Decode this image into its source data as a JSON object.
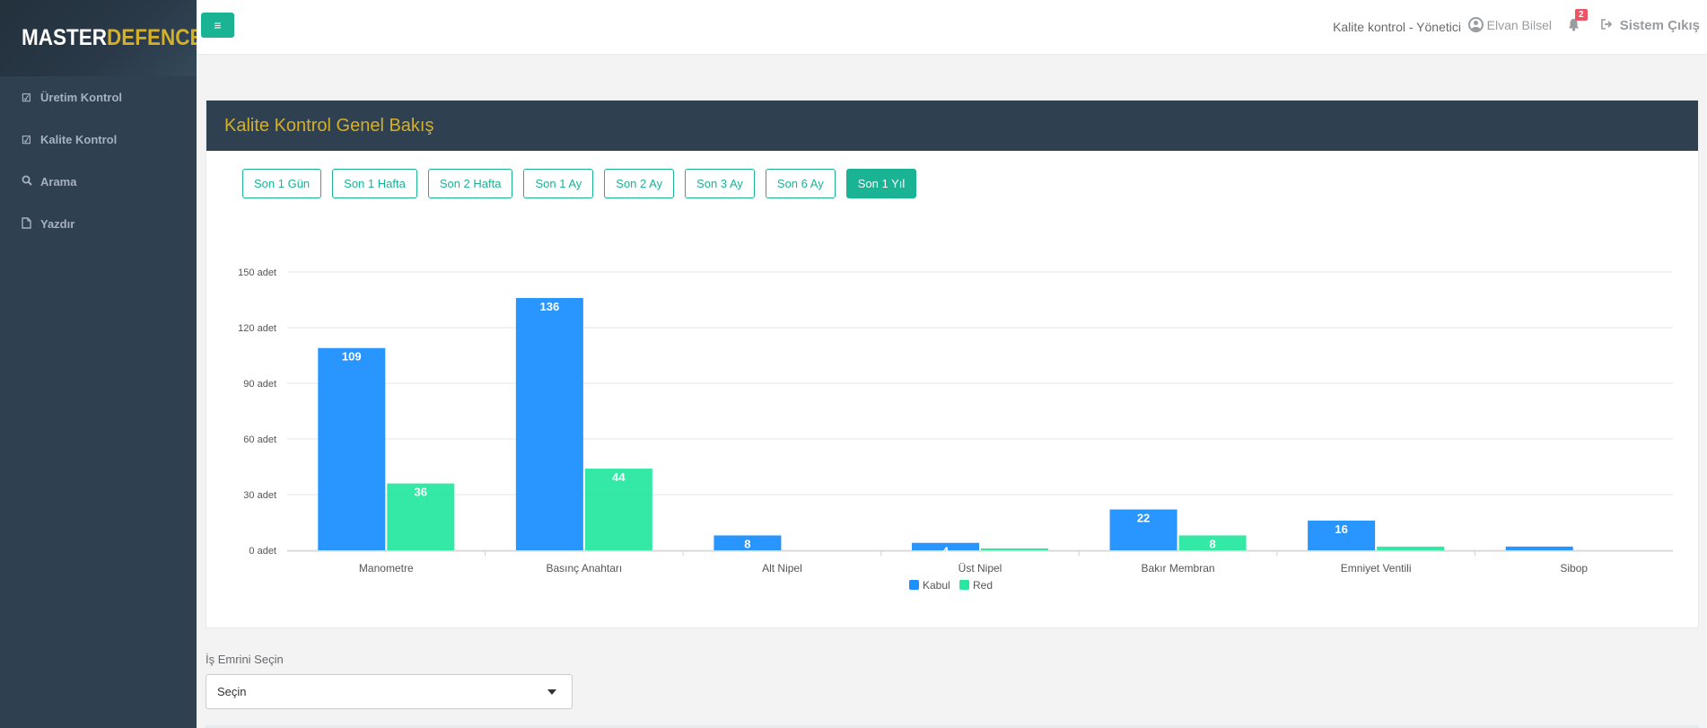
{
  "brand": {
    "part1": "MASTER",
    "part2": "DEFENCE"
  },
  "sidebar": {
    "items": [
      {
        "label": "Üretim Kontrol",
        "icon": "check-square-icon"
      },
      {
        "label": "Kalite Kontrol",
        "icon": "check-square-icon"
      },
      {
        "label": "Arama",
        "icon": "search-icon"
      },
      {
        "label": "Yazdır",
        "icon": "file-icon"
      }
    ]
  },
  "topbar": {
    "role": "Kalite kontrol - Yönetici",
    "user": "Elvan Bilsel",
    "notification_count": "2",
    "logout": "Sistem Çıkış"
  },
  "panel": {
    "title": "Kalite Kontrol Genel Bakış",
    "ranges": [
      "Son 1 Gün",
      "Son 1 Hafta",
      "Son 2 Hafta",
      "Son 1 Ay",
      "Son 2 Ay",
      "Son 3 Ay",
      "Son 6 Ay",
      "Son 1 Yıl"
    ],
    "active_range": "Son 1 Yıl"
  },
  "chart_data": {
    "type": "bar",
    "categories": [
      "Manometre",
      "Basınç Anahtarı",
      "Alt Nipel",
      "Üst Nipel",
      "Bakır Membran",
      "Emniyet Ventili",
      "Sibop"
    ],
    "series": [
      {
        "name": "Kabul",
        "color": "#1e90ff",
        "values": [
          109,
          136,
          8,
          4,
          22,
          16,
          2
        ]
      },
      {
        "name": "Red",
        "color": "#28e8a0",
        "values": [
          36,
          44,
          0,
          1,
          8,
          2,
          0
        ]
      }
    ],
    "ylim": [
      0,
      150
    ],
    "yticks": [
      0,
      30,
      60,
      90,
      120,
      150
    ],
    "ytick_labels": [
      "0 adet",
      "30 adet",
      "60 adet",
      "90 adet",
      "120 adet",
      "150 adet"
    ],
    "data_labels": [
      "109",
      "36",
      "136",
      "44",
      "8",
      "4",
      "22",
      "8",
      "16"
    ],
    "grid": true,
    "legend": "bottom-center"
  },
  "work_order": {
    "label": "İş Emrini Seçin",
    "selected": "Seçin"
  }
}
